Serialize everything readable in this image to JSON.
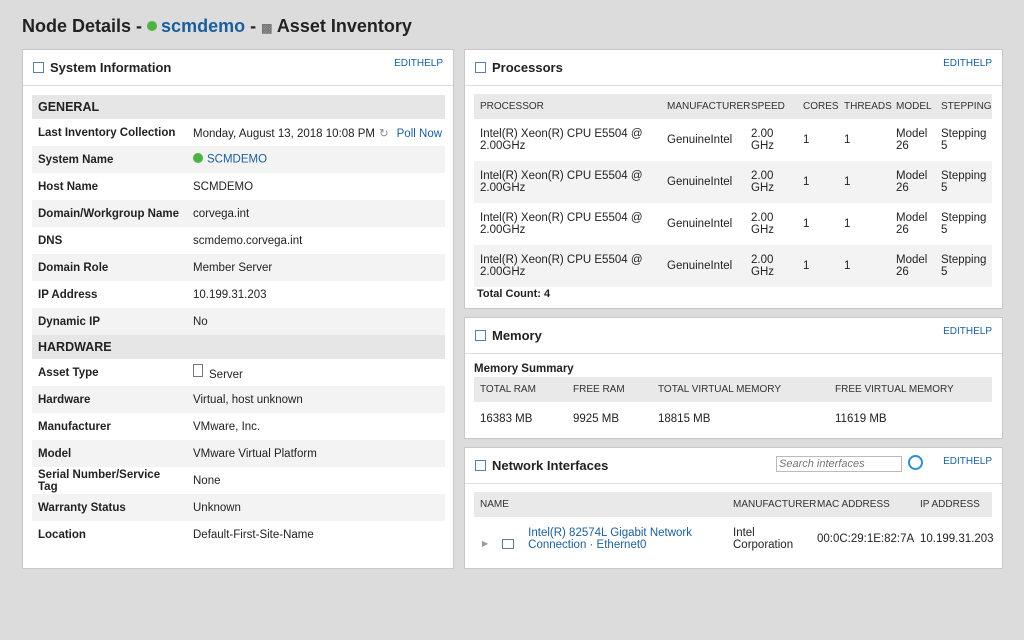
{
  "header": {
    "title": "Node Details -",
    "node": "scmdemo",
    "separator": "-",
    "page": "Asset Inventory"
  },
  "system_information": {
    "title": "System Information",
    "edit": "EDIT",
    "help": "HELP",
    "sections": [
      {
        "heading": "GENERAL",
        "rows": [
          {
            "label": "Last Inventory Collection",
            "value": "Monday, August 13, 2018 10:08 PM",
            "action": "Poll Now"
          },
          {
            "label": "System Name",
            "value": "SCMDEMO"
          },
          {
            "label": "Host Name",
            "value": "SCMDEMO"
          },
          {
            "label": "Domain/Workgroup Name",
            "value": "corvega.int"
          },
          {
            "label": "DNS",
            "value": "scmdemo.corvega.int"
          },
          {
            "label": "Domain Role",
            "value": "Member Server"
          },
          {
            "label": "IP Address",
            "value": "10.199.31.203"
          },
          {
            "label": "Dynamic IP",
            "value": "No"
          }
        ]
      },
      {
        "heading": "HARDWARE",
        "rows": [
          {
            "label": "Asset Type",
            "value": "Server"
          },
          {
            "label": "Hardware",
            "value": "Virtual, host unknown"
          },
          {
            "label": "Manufacturer",
            "value": "VMware, Inc."
          },
          {
            "label": "Model",
            "value": "VMware Virtual Platform"
          },
          {
            "label": "Serial Number/Service Tag",
            "value": "None"
          },
          {
            "label": "Warranty Status",
            "value": "Unknown"
          },
          {
            "label": "Location",
            "value": "Default-First-Site-Name"
          }
        ]
      }
    ]
  },
  "processors": {
    "title": "Processors",
    "edit": "EDIT",
    "help": "HELP",
    "columns": [
      "PROCESSOR",
      "MANUFACTURER",
      "SPEED",
      "CORES",
      "THREADS",
      "MODEL",
      "STEPPING"
    ],
    "rows": [
      [
        "Intel(R) Xeon(R) CPU E5504 @ 2.00GHz",
        "GenuineIntel",
        "2.00 GHz",
        "1",
        "1",
        "Model 26",
        "Stepping 5"
      ],
      [
        "Intel(R) Xeon(R) CPU E5504 @ 2.00GHz",
        "GenuineIntel",
        "2.00 GHz",
        "1",
        "1",
        "Model 26",
        "Stepping 5"
      ],
      [
        "Intel(R) Xeon(R) CPU E5504 @ 2.00GHz",
        "GenuineIntel",
        "2.00 GHz",
        "1",
        "1",
        "Model 26",
        "Stepping 5"
      ],
      [
        "Intel(R) Xeon(R) CPU E5504 @ 2.00GHz",
        "GenuineIntel",
        "2.00 GHz",
        "1",
        "1",
        "Model 26",
        "Stepping 5"
      ]
    ],
    "total": "Total Count: 4"
  },
  "memory": {
    "title": "Memory",
    "edit": "EDIT",
    "help": "HELP",
    "summary": "Memory Summary",
    "columns": [
      "TOTAL RAM",
      "FREE RAM",
      "TOTAL VIRTUAL MEMORY",
      "FREE VIRTUAL MEMORY"
    ],
    "rows": [
      [
        "16383 MB",
        "9925 MB",
        "18815 MB",
        "11619 MB"
      ]
    ]
  },
  "network_interfaces": {
    "title": "Network Interfaces",
    "search_placeholder": "Search interfaces",
    "edit": "EDIT",
    "help": "HELP",
    "columns": [
      "NAME",
      "MANUFACTURER",
      "MAC ADDRESS",
      "IP ADDRESS"
    ],
    "rows": [
      [
        "Intel(R) 82574L Gigabit Network Connection · Ethernet0",
        "Intel Corporation",
        "00:0C:29:1E:82:7A",
        "10.199.31.203"
      ]
    ]
  }
}
